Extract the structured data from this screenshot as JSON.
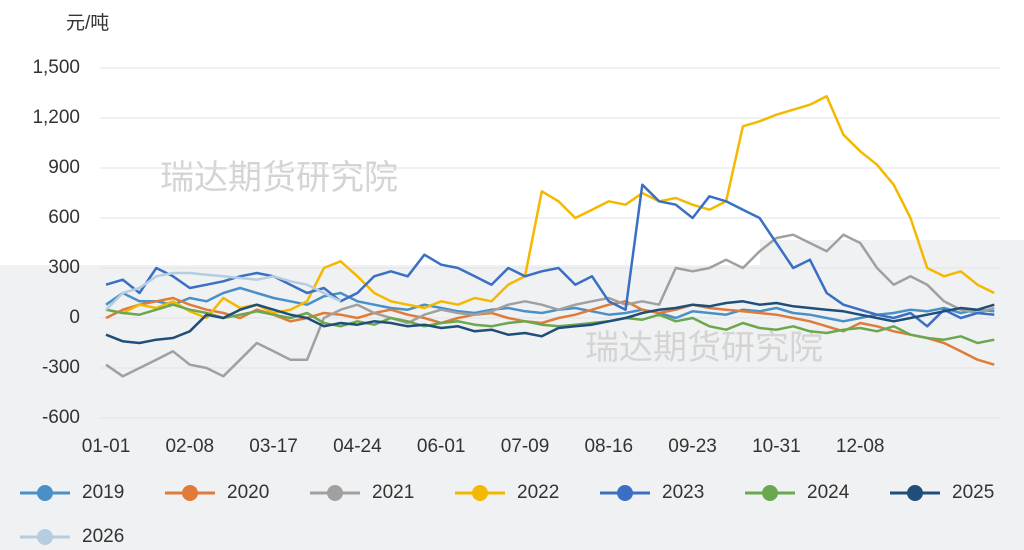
{
  "chart_data": {
    "type": "line",
    "y_unit": "元/吨",
    "watermarks": [
      "瑞达期货研究院",
      "瑞达期货研究院"
    ],
    "categories": [
      "01-01",
      null,
      null,
      null,
      null,
      "02-08",
      null,
      null,
      null,
      null,
      "03-17",
      null,
      null,
      null,
      null,
      "04-24",
      null,
      null,
      null,
      null,
      "06-01",
      null,
      null,
      null,
      null,
      "07-09",
      null,
      null,
      null,
      null,
      "08-16",
      null,
      null,
      null,
      null,
      "09-23",
      null,
      null,
      null,
      null,
      "10-31",
      null,
      null,
      null,
      null,
      "12-08",
      null,
      null,
      null,
      null,
      null,
      null,
      null,
      null
    ],
    "series": [
      {
        "name": "2019",
        "color": "#4a90c8",
        "values": [
          80,
          150,
          100,
          100,
          80,
          120,
          100,
          150,
          180,
          150,
          120,
          100,
          80,
          130,
          150,
          100,
          80,
          60,
          50,
          80,
          60,
          40,
          30,
          50,
          60,
          40,
          30,
          50,
          60,
          40,
          20,
          30,
          50,
          30,
          0,
          40,
          30,
          20,
          50,
          40,
          60,
          30,
          20,
          0,
          -20,
          0,
          20,
          30,
          50,
          40,
          60,
          30,
          50,
          40
        ]
      },
      {
        "name": "2020",
        "color": "#e07b39",
        "values": [
          0,
          50,
          80,
          100,
          120,
          80,
          50,
          30,
          0,
          50,
          20,
          -20,
          0,
          30,
          20,
          0,
          30,
          50,
          20,
          0,
          -30,
          0,
          20,
          30,
          0,
          -20,
          -30,
          0,
          20,
          50,
          80,
          100,
          50,
          30,
          50,
          80,
          60,
          50,
          40,
          30,
          20,
          0,
          -20,
          -50,
          -80,
          -30,
          -50,
          -80,
          -100,
          -120,
          -150,
          -200,
          -250,
          -280
        ]
      },
      {
        "name": "2021",
        "color": "#a0a0a0",
        "values": [
          -280,
          -350,
          -300,
          -250,
          -200,
          -280,
          -300,
          -350,
          -250,
          -150,
          -200,
          -250,
          -250,
          0,
          50,
          80,
          30,
          0,
          -30,
          20,
          50,
          30,
          20,
          40,
          80,
          100,
          80,
          50,
          80,
          100,
          120,
          80,
          100,
          80,
          300,
          280,
          300,
          350,
          300,
          400,
          480,
          500,
          450,
          400,
          500,
          450,
          300,
          200,
          250,
          200,
          100,
          50,
          30,
          60
        ]
      },
      {
        "name": "2022",
        "color": "#f5b800",
        "values": [
          50,
          30,
          80,
          60,
          100,
          40,
          0,
          120,
          60,
          80,
          30,
          50,
          100,
          300,
          340,
          250,
          150,
          100,
          80,
          60,
          100,
          80,
          120,
          100,
          200,
          250,
          760,
          700,
          600,
          650,
          700,
          680,
          750,
          700,
          720,
          680,
          650,
          700,
          1150,
          1180,
          1220,
          1250,
          1280,
          1330,
          1100,
          1000,
          920,
          800,
          600,
          300,
          250,
          280,
          200,
          150
        ]
      },
      {
        "name": "2023",
        "color": "#3a6fc4",
        "values": [
          200,
          230,
          150,
          300,
          250,
          180,
          200,
          220,
          250,
          270,
          250,
          200,
          150,
          180,
          100,
          150,
          250,
          280,
          250,
          380,
          320,
          300,
          250,
          200,
          300,
          250,
          280,
          300,
          200,
          250,
          100,
          50,
          800,
          700,
          680,
          600,
          730,
          700,
          650,
          600,
          450,
          300,
          350,
          150,
          80,
          50,
          20,
          0,
          30,
          -50,
          50,
          0,
          30,
          20
        ]
      },
      {
        "name": "2024",
        "color": "#6aa84f",
        "values": [
          50,
          30,
          20,
          50,
          80,
          50,
          30,
          0,
          20,
          40,
          20,
          0,
          30,
          -30,
          -50,
          -20,
          -40,
          0,
          -20,
          -50,
          -30,
          -20,
          -40,
          -50,
          -30,
          -20,
          -40,
          -50,
          -40,
          -30,
          -20,
          0,
          -10,
          20,
          -20,
          0,
          -50,
          -70,
          -30,
          -60,
          -70,
          -50,
          -80,
          -90,
          -70,
          -60,
          -80,
          -50,
          -100,
          -120,
          -130,
          -110,
          -150,
          -130
        ]
      },
      {
        "name": "2025",
        "color": "#1f4e79",
        "values": [
          -100,
          -140,
          -150,
          -130,
          -120,
          -80,
          20,
          0,
          50,
          80,
          50,
          20,
          0,
          -50,
          -30,
          -40,
          -20,
          -30,
          -50,
          -40,
          -60,
          -50,
          -80,
          -70,
          -100,
          -90,
          -110,
          -60,
          -50,
          -40,
          -20,
          0,
          30,
          50,
          60,
          80,
          70,
          90,
          100,
          80,
          90,
          70,
          60,
          50,
          40,
          20,
          0,
          -20,
          0,
          20,
          40,
          60,
          50,
          80
        ]
      },
      {
        "name": "2026",
        "color": "#b4cde0",
        "values": [
          50,
          150,
          180,
          250,
          270,
          270,
          260,
          250,
          240,
          230,
          250,
          220,
          200,
          150,
          100,
          null,
          null,
          null,
          null,
          null,
          null,
          null,
          null,
          null,
          null,
          null,
          null,
          null,
          null,
          null,
          null,
          null,
          null,
          null,
          null,
          null,
          null,
          null,
          null,
          null,
          null,
          null,
          null,
          null,
          null,
          null,
          null,
          null,
          null,
          null,
          null,
          null,
          null,
          null
        ]
      }
    ],
    "ylim": [
      -600,
      1500
    ],
    "yticks": [
      {
        "value": 1500,
        "label": "1,500"
      },
      {
        "value": 1200,
        "label": "1,200"
      },
      900,
      600,
      300,
      0,
      -300,
      -600
    ],
    "grid": true
  }
}
